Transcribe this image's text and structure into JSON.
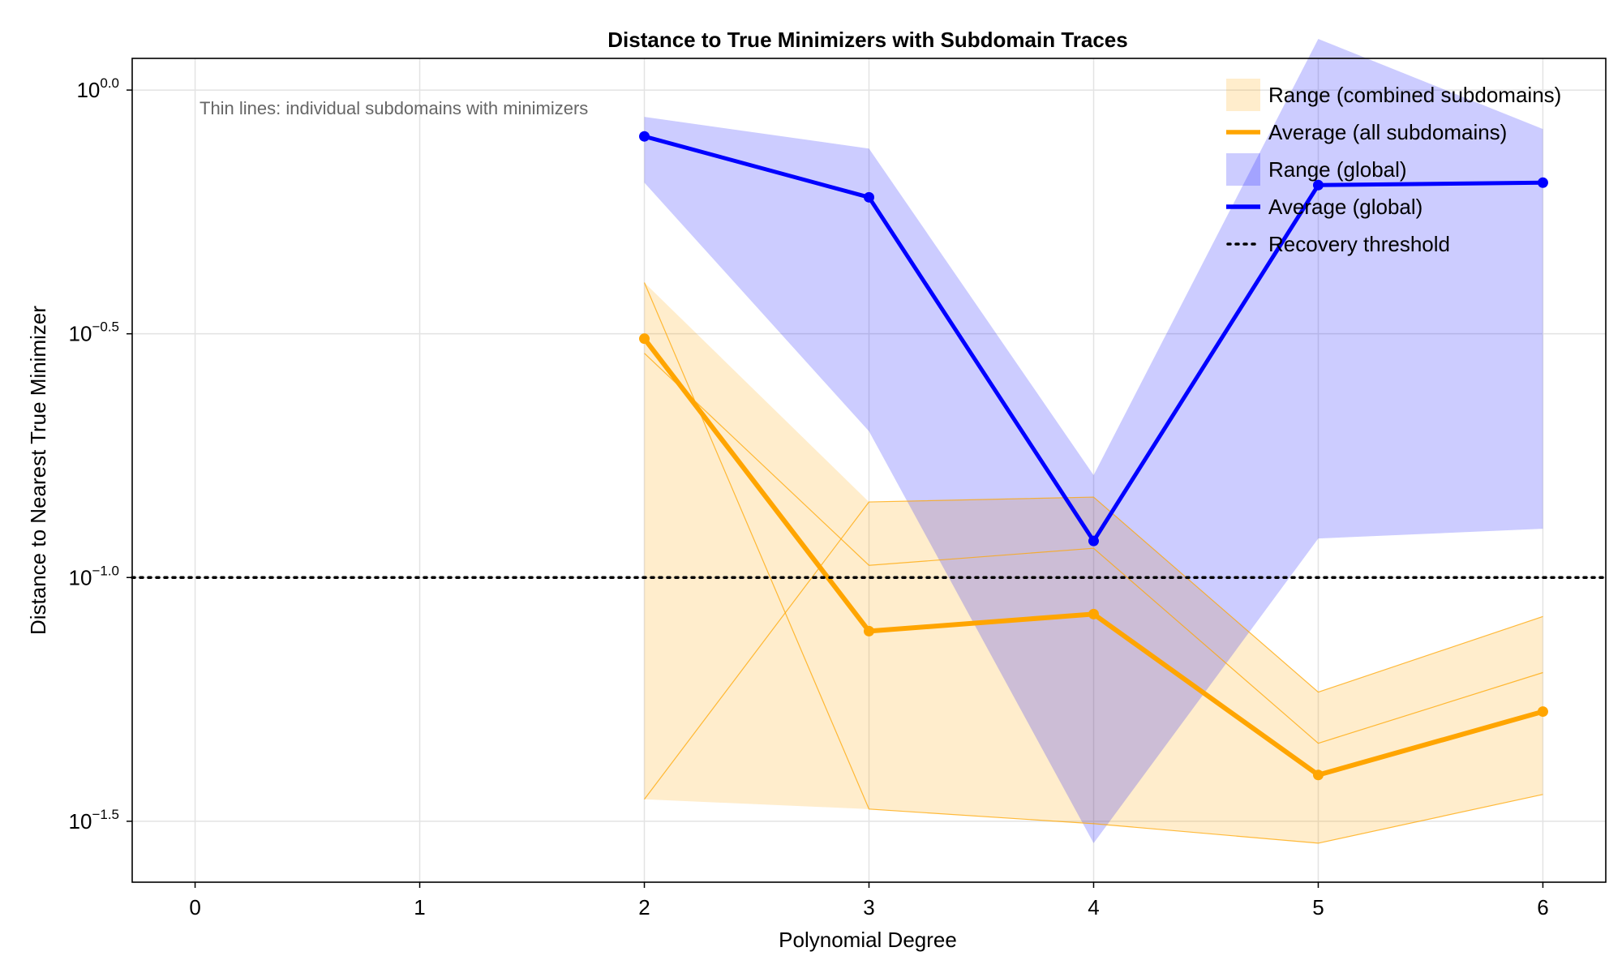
{
  "chart_data": {
    "type": "line",
    "title": "Distance to True Minimizers with Subdomain Traces",
    "xlabel": "Polynomial Degree",
    "ylabel": "Distance to Nearest True Minimizer",
    "x_ticks": [
      0,
      1,
      2,
      3,
      4,
      5,
      6
    ],
    "xlim": [
      -0.28,
      6.28
    ],
    "y_scale": "log10",
    "y_ticks": [
      {
        "exp": -1.5,
        "base": "10",
        "sup": "−1.5"
      },
      {
        "exp": -1.0,
        "base": "10",
        "sup": "−1.0"
      },
      {
        "exp": -0.5,
        "base": "10",
        "sup": "−0.5"
      },
      {
        "exp": 0.0,
        "base": "10",
        "sup": "0.0"
      }
    ],
    "ylim_log10": [
      -1.625,
      0.065
    ],
    "grid": true,
    "legend_position": "top-right",
    "annotation": "Thin lines: individual subdomains with minimizers",
    "series": [
      {
        "name": "Range (combined subdomains)",
        "kind": "band",
        "color": "#FFA500",
        "x": [
          2,
          3,
          4,
          5,
          6
        ],
        "lower_log10": [
          -1.455,
          -1.475,
          -1.505,
          -1.545,
          -1.445
        ],
        "upper_log10": [
          -0.395,
          -0.845,
          -0.835,
          -1.235,
          -1.08
        ]
      },
      {
        "name": "Average (all subdomains)",
        "kind": "line",
        "color": "#FFA500",
        "x": [
          2,
          3,
          4,
          5,
          6
        ],
        "log10_values": [
          -0.51,
          -1.11,
          -1.075,
          -1.405,
          -1.275
        ]
      },
      {
        "name": "Range (global)",
        "kind": "band",
        "color": "#0000FF",
        "x": [
          2,
          3,
          4,
          5,
          6
        ],
        "lower_log10": [
          -0.19,
          -0.7,
          -1.545,
          -0.92,
          -0.9
        ],
        "upper_log10": [
          -0.055,
          -0.12,
          -0.79,
          0.105,
          -0.08
        ]
      },
      {
        "name": "Average (global)",
        "kind": "line",
        "color": "#0000FF",
        "x": [
          2,
          3,
          4,
          5,
          6
        ],
        "log10_values": [
          -0.095,
          -0.22,
          -0.925,
          -0.195,
          -0.19
        ]
      },
      {
        "name": "Recovery threshold",
        "kind": "hline",
        "color": "#000000",
        "log10_value": -1.0
      }
    ],
    "subdomain_traces": [
      {
        "x": [
          2,
          3,
          4,
          5,
          6
        ],
        "log10_values": [
          -0.395,
          -1.475,
          -1.505,
          -1.545,
          -1.445
        ]
      },
      {
        "x": [
          2,
          3,
          4,
          5,
          6
        ],
        "log10_values": [
          -1.455,
          -0.845,
          -0.835,
          -1.235,
          -1.08
        ]
      },
      {
        "x": [
          2,
          3,
          4,
          5,
          6
        ],
        "log10_values": [
          -0.54,
          -0.975,
          -0.94,
          -1.34,
          -1.195
        ]
      }
    ]
  }
}
